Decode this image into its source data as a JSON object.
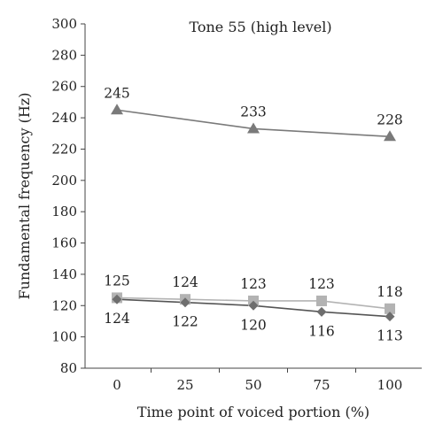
{
  "chart_data": {
    "type": "line",
    "title": "Tone 55 (high level)",
    "xlabel": "Time point of voiced portion (%)",
    "ylabel": "Fundamental frequency (Hz)",
    "x": [
      0,
      25,
      50,
      75,
      100
    ],
    "x_tick_labels": [
      "0",
      "25",
      "50",
      "75",
      "100"
    ],
    "ylim": [
      80,
      300
    ],
    "y_ticks": [
      80,
      100,
      120,
      140,
      160,
      180,
      200,
      220,
      240,
      260,
      280,
      300
    ],
    "grid": false,
    "legend": "none",
    "series": [
      {
        "marker": "triangle",
        "color": "#7a7a7a",
        "line_color": "#7a7a7a",
        "x": [
          0,
          50,
          100
        ],
        "values": [
          245,
          233,
          228
        ],
        "labels": [
          "245",
          "233",
          "228"
        ],
        "label_position": "above"
      },
      {
        "marker": "square",
        "color": "#b3b3b3",
        "line_color": "#b3b3b3",
        "x": [
          0,
          25,
          50,
          75,
          100
        ],
        "values": [
          125,
          124,
          123,
          123,
          118
        ],
        "labels": [
          "125",
          "124",
          "123",
          "123",
          "118"
        ],
        "label_position": "above"
      },
      {
        "marker": "diamond",
        "color": "#6e6e6e",
        "line_color": "#555555",
        "x": [
          0,
          25,
          50,
          75,
          100
        ],
        "values": [
          124,
          122,
          120,
          116,
          113
        ],
        "labels": [
          "124",
          "122",
          "120",
          "116",
          "113"
        ],
        "label_position": "below"
      }
    ]
  }
}
